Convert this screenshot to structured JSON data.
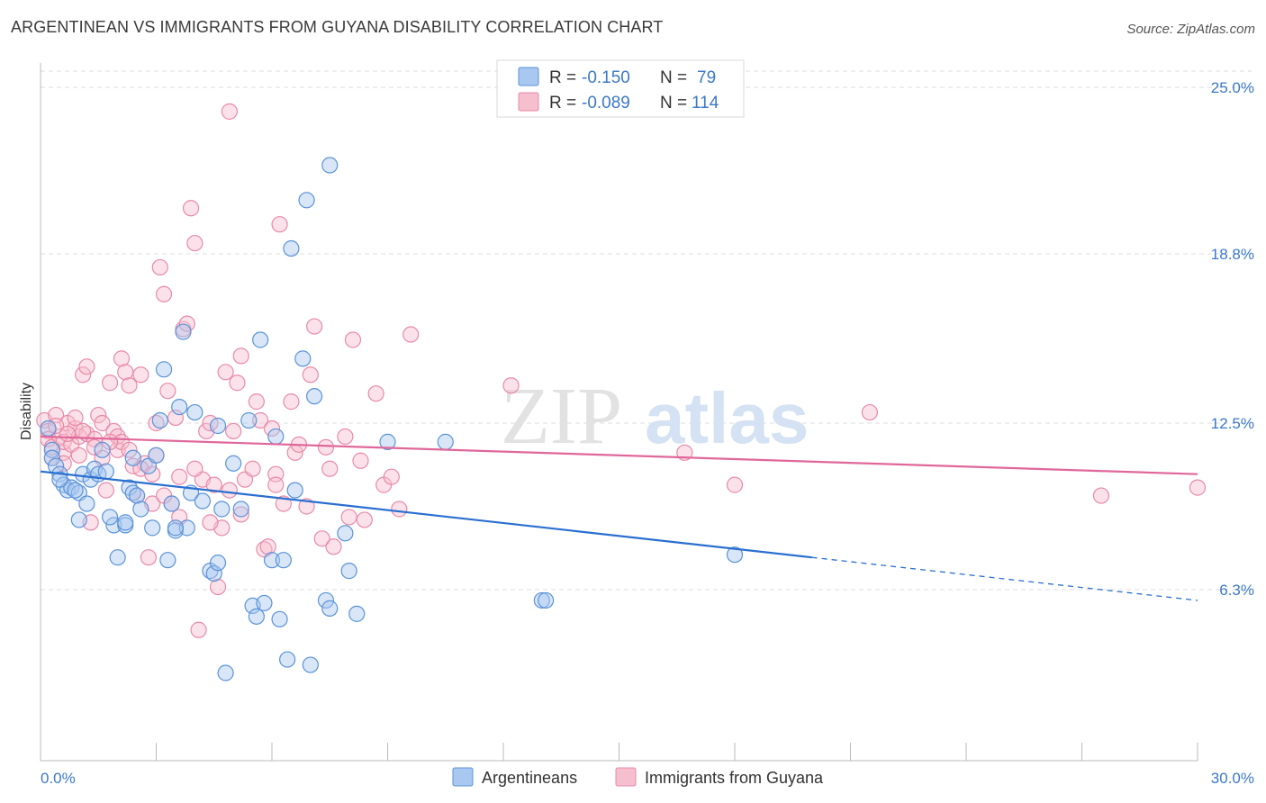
{
  "title": "ARGENTINEAN VS IMMIGRANTS FROM GUYANA DISABILITY CORRELATION CHART",
  "source": "Source: ZipAtlas.com",
  "watermark": {
    "zip": "ZIP",
    "atlas": "atlas"
  },
  "colors": {
    "blue_fill": "#a9c8ef",
    "blue_stroke": "#5b93d8",
    "blue_line": "#2a6fd0",
    "pink_fill": "#f6bfd0",
    "pink_stroke": "#e98aa8",
    "pink_line": "#e0679a",
    "tick": "#3b78c8",
    "grid": "#dddddd"
  },
  "legend": {
    "r_label": "R =",
    "n_label": "N =",
    "series1": {
      "r": "-0.150",
      "n": "79"
    },
    "series2": {
      "r": "-0.089",
      "n": "114"
    }
  },
  "chart_data": {
    "type": "scatter",
    "xlabel": "",
    "ylabel": "Disability",
    "xlim": [
      0,
      30
    ],
    "ylim": [
      0,
      26.5
    ],
    "x_tick_labels": [
      "0.0%",
      "30.0%"
    ],
    "y_ticks": [
      6.3,
      12.5,
      18.8,
      25.0
    ],
    "y_tick_labels": [
      "6.3%",
      "12.5%",
      "18.8%",
      "25.0%"
    ],
    "grid": true,
    "legend_position": "top-center",
    "series": [
      {
        "name": "Argentineans",
        "trend": {
          "x0": 0,
          "y0": 10.7,
          "x1": 20,
          "y1": 7.5,
          "dash_to_x": 30,
          "dash_to_y": 5.9
        },
        "points": [
          [
            0.2,
            12.3
          ],
          [
            0.3,
            11.5
          ],
          [
            0.3,
            11.2
          ],
          [
            0.4,
            10.9
          ],
          [
            0.5,
            10.6
          ],
          [
            0.6,
            10.2
          ],
          [
            0.7,
            10.0
          ],
          [
            0.8,
            10.1
          ],
          [
            1.0,
            9.9
          ],
          [
            1.1,
            10.6
          ],
          [
            1.0,
            8.9
          ],
          [
            1.2,
            9.5
          ],
          [
            1.3,
            10.4
          ],
          [
            1.4,
            10.8
          ],
          [
            1.5,
            10.6
          ],
          [
            1.6,
            11.5
          ],
          [
            1.7,
            10.7
          ],
          [
            1.9,
            8.7
          ],
          [
            2.0,
            7.5
          ],
          [
            2.2,
            8.7
          ],
          [
            2.3,
            10.1
          ],
          [
            2.4,
            11.2
          ],
          [
            2.4,
            9.9
          ],
          [
            2.5,
            9.8
          ],
          [
            2.6,
            9.3
          ],
          [
            2.8,
            10.9
          ],
          [
            2.9,
            8.6
          ],
          [
            3.0,
            11.3
          ],
          [
            3.1,
            12.6
          ],
          [
            3.2,
            14.5
          ],
          [
            3.3,
            7.4
          ],
          [
            3.4,
            9.5
          ],
          [
            3.5,
            8.5
          ],
          [
            3.6,
            13.1
          ],
          [
            3.7,
            15.9
          ],
          [
            3.8,
            8.6
          ],
          [
            3.9,
            9.9
          ],
          [
            4.0,
            12.9
          ],
          [
            4.2,
            9.6
          ],
          [
            4.4,
            7.0
          ],
          [
            4.5,
            6.9
          ],
          [
            4.6,
            7.3
          ],
          [
            4.6,
            12.4
          ],
          [
            4.7,
            9.3
          ],
          [
            4.8,
            3.2
          ],
          [
            5.0,
            11.0
          ],
          [
            5.2,
            9.3
          ],
          [
            5.4,
            12.6
          ],
          [
            5.5,
            5.7
          ],
          [
            5.6,
            5.3
          ],
          [
            5.7,
            15.6
          ],
          [
            5.8,
            5.8
          ],
          [
            6.0,
            7.4
          ],
          [
            6.1,
            12.0
          ],
          [
            6.2,
            5.2
          ],
          [
            6.3,
            7.4
          ],
          [
            6.4,
            3.7
          ],
          [
            6.5,
            19.0
          ],
          [
            6.6,
            10.0
          ],
          [
            6.8,
            14.9
          ],
          [
            6.9,
            20.8
          ],
          [
            7.1,
            13.5
          ],
          [
            7.5,
            22.1
          ],
          [
            7.4,
            5.9
          ],
          [
            7.5,
            5.6
          ],
          [
            7.9,
            8.4
          ],
          [
            8.0,
            7.0
          ],
          [
            8.2,
            5.4
          ],
          [
            9.0,
            11.8
          ],
          [
            10.5,
            11.8
          ],
          [
            13.0,
            5.9
          ],
          [
            13.1,
            5.9
          ],
          [
            18.0,
            7.6
          ],
          [
            7.0,
            3.5
          ],
          [
            0.5,
            10.4
          ],
          [
            1.8,
            9.0
          ],
          [
            2.2,
            8.8
          ],
          [
            0.9,
            10.0
          ],
          [
            3.5,
            8.6
          ]
        ]
      },
      {
        "name": "Immigrants from Guyana",
        "trend": {
          "x0": 0,
          "y0": 12.0,
          "x1": 30,
          "y1": 10.6
        },
        "points": [
          [
            0.1,
            12.6
          ],
          [
            0.2,
            12.2
          ],
          [
            0.2,
            11.9
          ],
          [
            0.3,
            11.6
          ],
          [
            0.3,
            11.2
          ],
          [
            0.4,
            12.8
          ],
          [
            0.5,
            12.0
          ],
          [
            0.6,
            11.4
          ],
          [
            0.6,
            11.8
          ],
          [
            0.7,
            12.5
          ],
          [
            0.8,
            11.7
          ],
          [
            0.9,
            12.3
          ],
          [
            1.0,
            11.3
          ],
          [
            1.0,
            12.0
          ],
          [
            1.1,
            14.3
          ],
          [
            1.2,
            14.6
          ],
          [
            1.2,
            12.1
          ],
          [
            1.3,
            8.8
          ],
          [
            1.4,
            11.9
          ],
          [
            1.5,
            12.8
          ],
          [
            1.6,
            12.5
          ],
          [
            1.6,
            11.2
          ],
          [
            1.7,
            10.0
          ],
          [
            1.8,
            14.0
          ],
          [
            1.9,
            12.2
          ],
          [
            2.0,
            11.5
          ],
          [
            2.0,
            12.0
          ],
          [
            2.1,
            14.9
          ],
          [
            2.1,
            11.8
          ],
          [
            2.2,
            14.4
          ],
          [
            2.3,
            13.9
          ],
          [
            2.3,
            11.5
          ],
          [
            2.4,
            10.9
          ],
          [
            2.5,
            9.8
          ],
          [
            2.6,
            14.3
          ],
          [
            2.7,
            11.0
          ],
          [
            2.8,
            7.5
          ],
          [
            2.9,
            9.5
          ],
          [
            3.0,
            12.5
          ],
          [
            3.0,
            11.3
          ],
          [
            3.1,
            18.3
          ],
          [
            3.2,
            17.3
          ],
          [
            3.3,
            13.7
          ],
          [
            3.4,
            9.5
          ],
          [
            3.5,
            12.7
          ],
          [
            3.6,
            9.0
          ],
          [
            3.7,
            16.0
          ],
          [
            3.8,
            16.2
          ],
          [
            3.9,
            20.5
          ],
          [
            4.0,
            19.2
          ],
          [
            4.1,
            4.8
          ],
          [
            4.2,
            10.4
          ],
          [
            4.3,
            12.2
          ],
          [
            4.4,
            12.5
          ],
          [
            4.5,
            10.2
          ],
          [
            4.6,
            6.4
          ],
          [
            4.7,
            8.6
          ],
          [
            4.8,
            14.4
          ],
          [
            4.9,
            24.1
          ],
          [
            5.0,
            12.2
          ],
          [
            5.1,
            14.0
          ],
          [
            5.2,
            15.0
          ],
          [
            5.3,
            10.4
          ],
          [
            5.5,
            10.8
          ],
          [
            5.6,
            13.3
          ],
          [
            5.7,
            12.6
          ],
          [
            5.8,
            7.8
          ],
          [
            5.9,
            7.9
          ],
          [
            6.0,
            12.3
          ],
          [
            6.1,
            10.6
          ],
          [
            6.2,
            19.9
          ],
          [
            6.3,
            9.5
          ],
          [
            6.5,
            13.3
          ],
          [
            6.6,
            11.4
          ],
          [
            6.7,
            11.7
          ],
          [
            6.9,
            9.4
          ],
          [
            7.0,
            14.3
          ],
          [
            7.1,
            16.1
          ],
          [
            7.3,
            8.2
          ],
          [
            7.5,
            10.8
          ],
          [
            7.6,
            7.9
          ],
          [
            7.9,
            12.0
          ],
          [
            8.1,
            15.6
          ],
          [
            8.3,
            11.1
          ],
          [
            8.4,
            8.9
          ],
          [
            8.7,
            13.6
          ],
          [
            8.9,
            10.2
          ],
          [
            9.1,
            10.5
          ],
          [
            9.3,
            9.3
          ],
          [
            9.6,
            15.8
          ],
          [
            12.2,
            13.9
          ],
          [
            16.7,
            11.4
          ],
          [
            18.0,
            10.2
          ],
          [
            21.5,
            12.9
          ],
          [
            27.5,
            9.8
          ],
          [
            30.0,
            10.1
          ],
          [
            1.1,
            12.2
          ],
          [
            1.4,
            11.6
          ],
          [
            0.9,
            12.7
          ],
          [
            2.6,
            10.8
          ],
          [
            3.2,
            9.8
          ],
          [
            4.0,
            10.8
          ],
          [
            4.4,
            8.8
          ],
          [
            5.2,
            9.1
          ],
          [
            0.4,
            12.4
          ],
          [
            0.7,
            12.1
          ],
          [
            1.8,
            11.8
          ],
          [
            2.9,
            10.6
          ],
          [
            3.6,
            10.5
          ],
          [
            4.9,
            10.0
          ],
          [
            6.1,
            10.2
          ],
          [
            7.4,
            11.6
          ],
          [
            8.0,
            9.0
          ],
          [
            0.6,
            11.0
          ]
        ]
      }
    ]
  }
}
